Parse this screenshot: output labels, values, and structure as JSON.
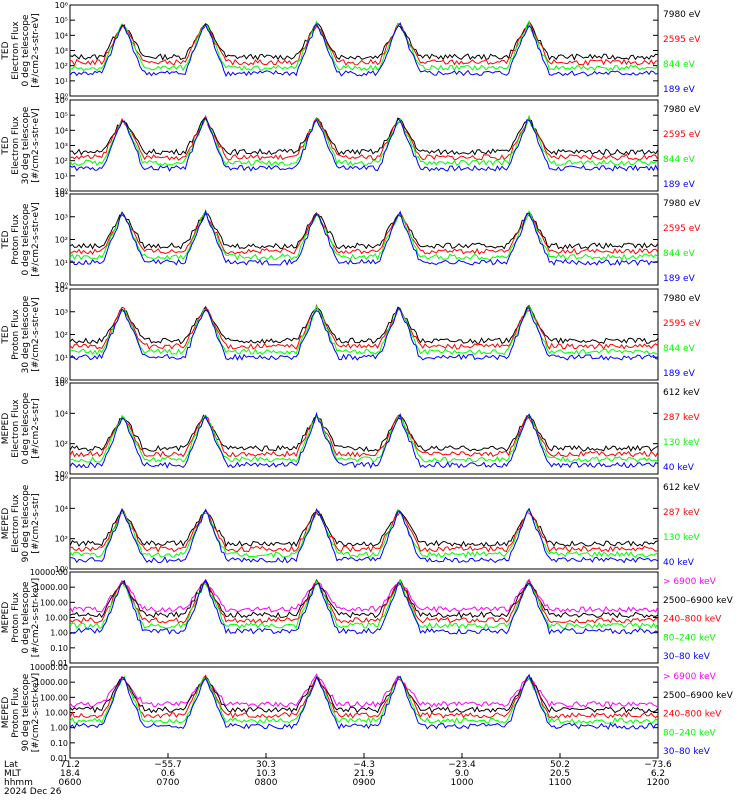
{
  "colors": {
    "black": "#000000",
    "red": "#ff0000",
    "green": "#00ff00",
    "blue": "#0000ff",
    "magenta": "#ff00ff"
  },
  "chart_data": [
    {
      "type": "line",
      "ylabel": [
        "TED",
        "Electron Flux",
        "0 deg telescope",
        "[#/cm2-s-str-eV]"
      ],
      "yscale": "log",
      "ylim": [
        1,
        1000000
      ],
      "ytick_labels": [
        "10⁰",
        "10¹",
        "10²",
        "10³",
        "10⁴",
        "10⁵",
        "10⁶"
      ],
      "ytick_values": [
        1,
        10,
        100,
        1000,
        10000,
        100000,
        1000000
      ],
      "series": [
        {
          "name": "7980 eV",
          "color": "black"
        },
        {
          "name": "2595 eV",
          "color": "red"
        },
        {
          "name": "844 eV",
          "color": "green"
        },
        {
          "name": "189 eV",
          "color": "blue"
        }
      ],
      "peaks_x": [
        0.09,
        0.23,
        0.42,
        0.56,
        0.78
      ]
    },
    {
      "type": "line",
      "ylabel": [
        "TED",
        "Electron Flux",
        "30 deg telescope",
        "[#/cm2-s-str-eV]"
      ],
      "yscale": "log",
      "ylim": [
        1,
        1000000
      ],
      "ytick_labels": [
        "10⁰",
        "10¹",
        "10²",
        "10³",
        "10⁴",
        "10⁵",
        "10⁶"
      ],
      "ytick_values": [
        1,
        10,
        100,
        1000,
        10000,
        100000,
        1000000
      ],
      "series": [
        {
          "name": "7980 eV",
          "color": "black"
        },
        {
          "name": "2595 eV",
          "color": "red"
        },
        {
          "name": "844 eV",
          "color": "green"
        },
        {
          "name": "189 eV",
          "color": "blue"
        }
      ],
      "peaks_x": [
        0.09,
        0.23,
        0.42,
        0.56,
        0.78
      ]
    },
    {
      "type": "line",
      "ylabel": [
        "TED",
        "Proton Flux",
        "0 deg telescope",
        "[#/cm2-s-str-eV]"
      ],
      "yscale": "log",
      "ylim": [
        1,
        10000
      ],
      "ytick_labels": [
        "10⁰",
        "10¹",
        "10²",
        "10³",
        "10⁴"
      ],
      "ytick_values": [
        1,
        10,
        100,
        1000,
        10000
      ],
      "series": [
        {
          "name": "7980 eV",
          "color": "black"
        },
        {
          "name": "2595 eV",
          "color": "red"
        },
        {
          "name": "844 eV",
          "color": "green"
        },
        {
          "name": "189 eV",
          "color": "blue"
        }
      ],
      "peaks_x": [
        0.09,
        0.23,
        0.42,
        0.56,
        0.78
      ]
    },
    {
      "type": "line",
      "ylabel": [
        "TED",
        "Proton Flux",
        "30 deg telescope",
        "[#/cm2-s-str-eV]"
      ],
      "yscale": "log",
      "ylim": [
        1,
        10000
      ],
      "ytick_labels": [
        "10⁰",
        "10¹",
        "10²",
        "10³",
        "10⁴"
      ],
      "ytick_values": [
        1,
        10,
        100,
        1000,
        10000
      ],
      "series": [
        {
          "name": "7980 eV",
          "color": "black"
        },
        {
          "name": "2595 eV",
          "color": "red"
        },
        {
          "name": "844 eV",
          "color": "green"
        },
        {
          "name": "189 eV",
          "color": "blue"
        }
      ],
      "peaks_x": [
        0.09,
        0.23,
        0.42,
        0.56,
        0.78
      ]
    },
    {
      "type": "line",
      "ylabel": [
        "MEPED",
        "Electron Flux",
        "0 deg telescope",
        "[#/cm2-s-str]"
      ],
      "yscale": "log",
      "ylim": [
        1,
        1000000
      ],
      "ytick_labels": [
        "10⁰",
        "10²",
        "10⁴",
        "10⁶"
      ],
      "ytick_values": [
        1,
        100,
        10000,
        1000000
      ],
      "series": [
        {
          "name": "612 keV",
          "color": "black"
        },
        {
          "name": "287 keV",
          "color": "red"
        },
        {
          "name": "130 keV",
          "color": "green"
        },
        {
          "name": "40 keV",
          "color": "blue"
        }
      ],
      "peaks_x": [
        0.09,
        0.23,
        0.42,
        0.56,
        0.78
      ]
    },
    {
      "type": "line",
      "ylabel": [
        "MEPED",
        "Electron Flux",
        "90 deg telescope",
        "[#/cm2-s-str]"
      ],
      "yscale": "log",
      "ylim": [
        1,
        1000000
      ],
      "ytick_labels": [
        "10⁰",
        "10²",
        "10⁴",
        "10⁶"
      ],
      "ytick_values": [
        1,
        100,
        10000,
        1000000
      ],
      "series": [
        {
          "name": "612 keV",
          "color": "black"
        },
        {
          "name": "287 keV",
          "color": "red"
        },
        {
          "name": "130 keV",
          "color": "green"
        },
        {
          "name": "40 keV",
          "color": "blue"
        }
      ],
      "peaks_x": [
        0.09,
        0.23,
        0.42,
        0.56,
        0.78
      ]
    },
    {
      "type": "line",
      "ylabel": [
        "MEPED",
        "Proton Flux",
        "0 deg telescope",
        "[#/cm2-s-str-keV]"
      ],
      "yscale": "log",
      "ylim": [
        0.01,
        10000
      ],
      "ytick_labels": [
        "0.01",
        "0.10",
        "1.00",
        "10.00",
        "100.00",
        "1000.00",
        "10000.00"
      ],
      "ytick_values": [
        0.01,
        0.1,
        1,
        10,
        100,
        1000,
        10000
      ],
      "series": [
        {
          "name": "> 6900 keV",
          "color": "magenta"
        },
        {
          "name": "2500–6900 keV",
          "color": "black"
        },
        {
          "name": "240–800 keV",
          "color": "red"
        },
        {
          "name": "80–240 keV",
          "color": "green"
        },
        {
          "name": "30–80 keV",
          "color": "blue"
        }
      ],
      "peaks_x": [
        0.09,
        0.23,
        0.42,
        0.56,
        0.78
      ]
    },
    {
      "type": "line",
      "ylabel": [
        "MEPED",
        "Proton Flux",
        "90 deg telescope",
        "[#/cm2-s-str-keV]"
      ],
      "yscale": "log",
      "ylim": [
        0.01,
        10000
      ],
      "ytick_labels": [
        "0.01",
        "0.10",
        "1.00",
        "10.00",
        "100.00",
        "1000.00",
        "10000.00"
      ],
      "ytick_values": [
        0.01,
        0.1,
        1,
        10,
        100,
        1000,
        10000
      ],
      "series": [
        {
          "name": "> 6900 keV",
          "color": "magenta"
        },
        {
          "name": "2500–6900 keV",
          "color": "black"
        },
        {
          "name": "240–800 keV",
          "color": "red"
        },
        {
          "name": "80–240 keV",
          "color": "green"
        },
        {
          "name": "30–80 keV",
          "color": "blue"
        }
      ],
      "peaks_x": [
        0.09,
        0.23,
        0.42,
        0.56,
        0.78
      ]
    }
  ],
  "x_axis": {
    "row_labels": [
      "Lat",
      "MLT",
      "hhmm"
    ],
    "date": "2024 Dec 26",
    "ticks": [
      {
        "lat": "71.2",
        "mlt": "18.4",
        "hhmm": "0600"
      },
      {
        "lat": "−55.7",
        "mlt": "0.6",
        "hhmm": "0700"
      },
      {
        "lat": "30.3",
        "mlt": "10.3",
        "hhmm": "0800"
      },
      {
        "lat": "−4.3",
        "mlt": "21.9",
        "hhmm": "0900"
      },
      {
        "lat": "−23.4",
        "mlt": "9.0",
        "hhmm": "1000"
      },
      {
        "lat": "50.2",
        "mlt": "20.5",
        "hhmm": "1100"
      },
      {
        "lat": "−73.6",
        "mlt": "6.2",
        "hhmm": "1200"
      }
    ]
  }
}
